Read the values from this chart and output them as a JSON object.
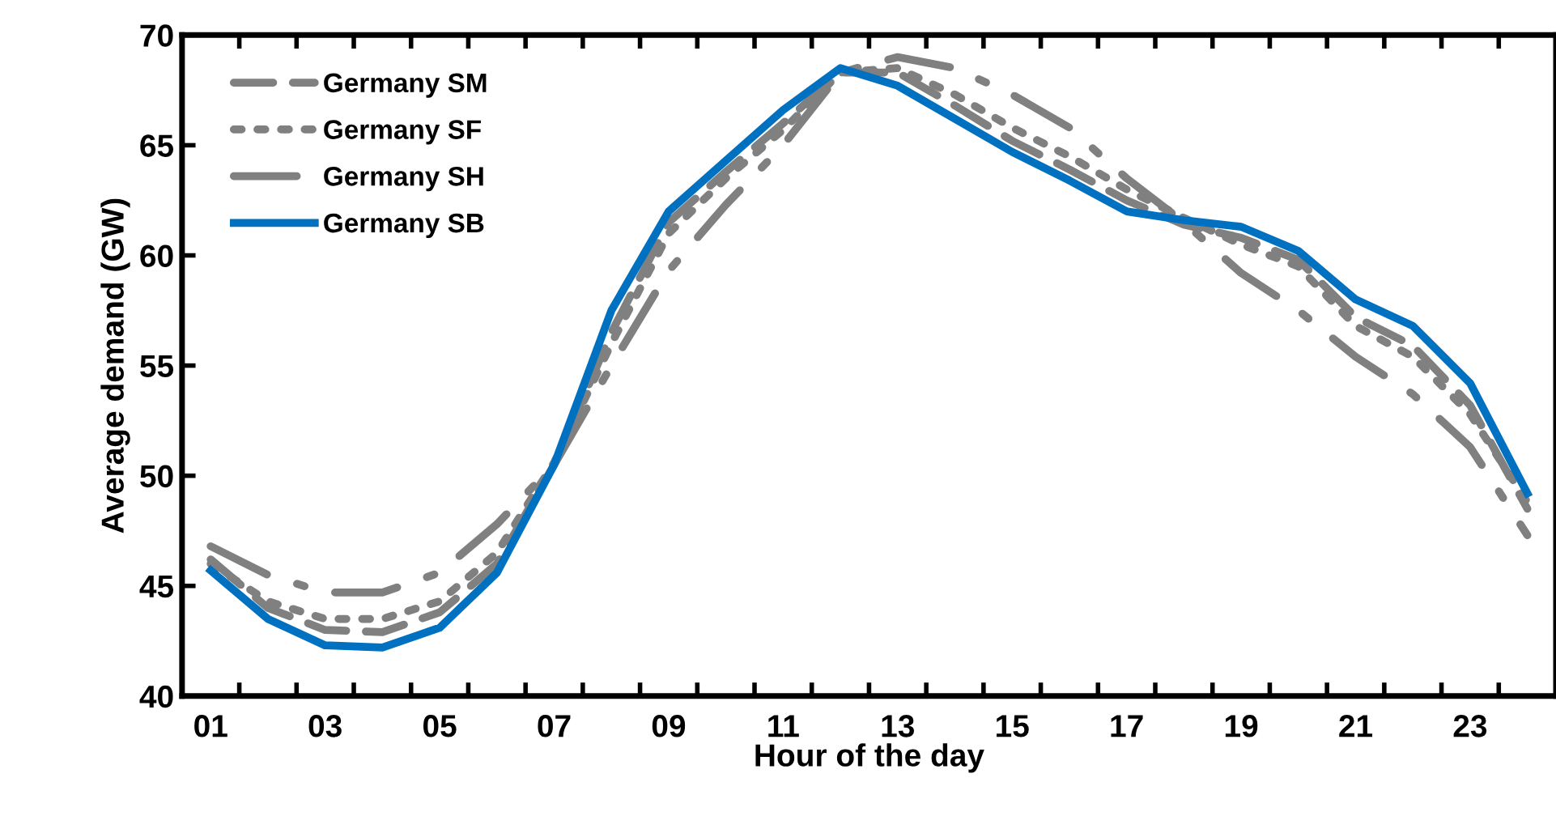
{
  "chart_data": {
    "type": "line",
    "xlabel": "Hour of the day",
    "ylabel": "Average demand (GW)",
    "categories": [
      "01",
      null,
      "03",
      null,
      "05",
      null,
      "07",
      null,
      "09",
      null,
      "11",
      null,
      "13",
      null,
      "15",
      null,
      "17",
      null,
      "19",
      null,
      "21",
      null,
      "23",
      null
    ],
    "series": [
      {
        "name": "Germany SM",
        "color": "#808080",
        "line_style": "dashed",
        "values": [
          46.2,
          44.0,
          43.0,
          42.9,
          43.8,
          46.0,
          50.5,
          56.5,
          61.5,
          63.8,
          66.0,
          68.3,
          68.3,
          66.8,
          65.2,
          63.9,
          62.5,
          61.4,
          60.8,
          59.8,
          57.2,
          55.9,
          53.2,
          48.5
        ]
      },
      {
        "name": "Germany SF",
        "color": "#808080",
        "line_style": "dotted",
        "values": [
          46.0,
          44.3,
          43.5,
          43.5,
          44.3,
          46.5,
          50.6,
          56.0,
          61.0,
          63.5,
          65.7,
          68.3,
          68.5,
          67.3,
          65.8,
          64.5,
          63.0,
          61.7,
          60.5,
          59.5,
          56.8,
          55.4,
          52.8,
          48.8
        ]
      },
      {
        "name": "Germany SH",
        "color": "#808080",
        "line_style": "dashdot",
        "values": [
          46.8,
          45.5,
          44.7,
          44.7,
          45.6,
          47.8,
          50.5,
          55.0,
          59.3,
          62.3,
          65.0,
          68.3,
          69.0,
          68.5,
          67.3,
          65.8,
          63.5,
          61.5,
          59.2,
          57.5,
          55.4,
          53.7,
          51.3,
          47.3
        ]
      },
      {
        "name": "Germany SB",
        "color": "#0070c0",
        "line_style": "solid",
        "values": [
          45.7,
          43.5,
          42.3,
          42.2,
          43.1,
          45.6,
          50.5,
          57.5,
          62.0,
          64.3,
          66.6,
          68.5,
          67.7,
          66.2,
          64.7,
          63.4,
          62.0,
          61.6,
          61.3,
          60.2,
          58.0,
          56.8,
          54.2,
          49.2
        ]
      }
    ],
    "ylim": [
      40,
      70
    ],
    "yticks": [
      40,
      45,
      50,
      55,
      60,
      65,
      70
    ],
    "grid": false,
    "legend": "top left",
    "marker": "none"
  }
}
